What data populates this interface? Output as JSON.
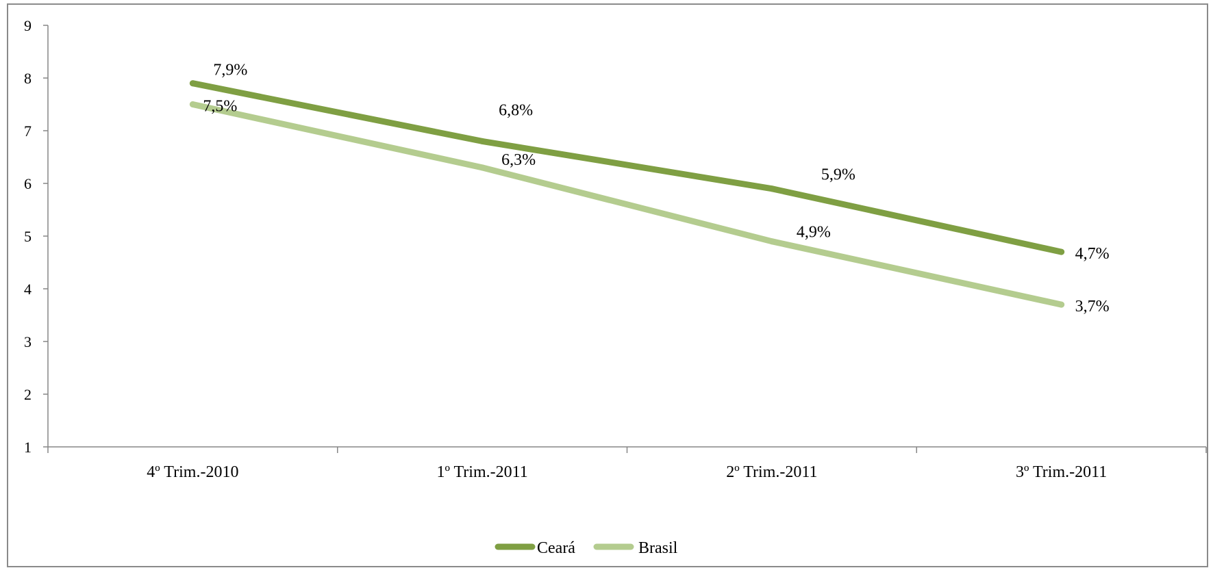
{
  "chart_data": {
    "type": "line",
    "title": "",
    "xlabel": "",
    "ylabel": "",
    "categories": [
      "4º Trim.-2010",
      "1º Trim.-2011",
      "2º Trim.-2011",
      "3º Trim.-2011"
    ],
    "ylim": [
      1,
      9
    ],
    "yticks": [
      "1",
      "2",
      "3",
      "4",
      "5",
      "6",
      "7",
      "8",
      "9"
    ],
    "grid": false,
    "legend_position": "bottom",
    "series": [
      {
        "name": "Ceará",
        "values": [
          7.9,
          6.8,
          5.9,
          4.7
        ],
        "labels": [
          "7,9%",
          "6,8%",
          "5,9%",
          "4,7%"
        ],
        "color": "#7f9f43"
      },
      {
        "name": "Brasil",
        "values": [
          7.5,
          6.3,
          4.9,
          3.7
        ],
        "labels": [
          "7,5%",
          "6,3%",
          "4,9%",
          "3,7%"
        ],
        "color": "#b4cc8f"
      }
    ]
  }
}
